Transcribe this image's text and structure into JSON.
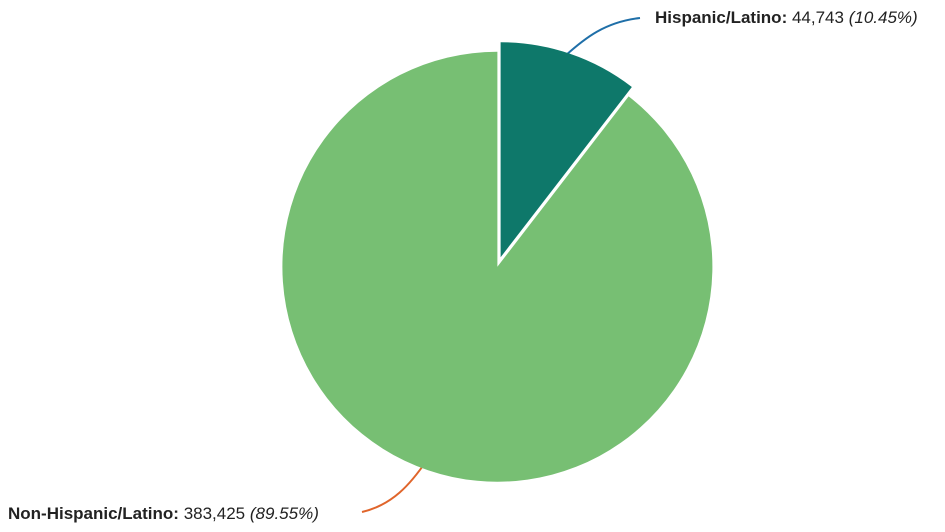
{
  "chart_data": {
    "type": "pie",
    "slices": [
      {
        "label": "Hispanic/Latino",
        "value": 44743,
        "value_text": "44,743",
        "percent": 10.45,
        "percent_text": "(10.45%)",
        "color": "#0e786a",
        "leader_color": "#1f6fa8"
      },
      {
        "label": "Non-Hispanic/Latino",
        "value": 383425,
        "value_text": "383,425",
        "percent": 89.55,
        "percent_text": "(89.55%)",
        "color": "#77bf73",
        "leader_color": "#e0652b"
      }
    ],
    "start_angle_deg": 0,
    "direction": "clockwise",
    "exploded": true
  },
  "labels": {
    "hispanic": {
      "name": "Hispanic/Latino:",
      "value": "44,743",
      "percent": "(10.45%)"
    },
    "non_hispanic": {
      "name": "Non-Hispanic/Latino:",
      "value": "383,425",
      "percent": "(89.55%)"
    }
  }
}
